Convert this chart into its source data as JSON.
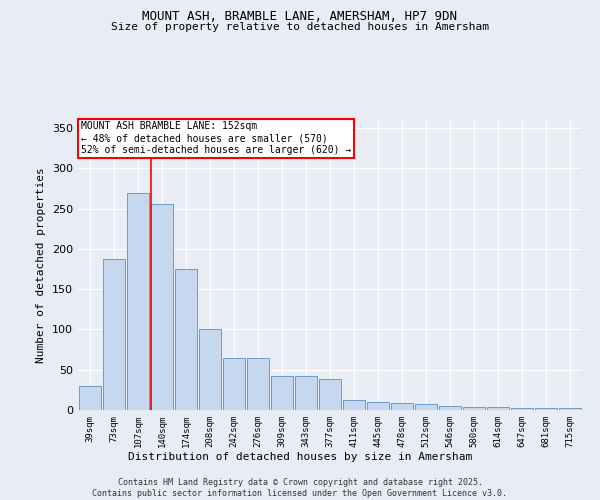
{
  "title_line1": "MOUNT ASH, BRAMBLE LANE, AMERSHAM, HP7 9DN",
  "title_line2": "Size of property relative to detached houses in Amersham",
  "xlabel": "Distribution of detached houses by size in Amersham",
  "ylabel": "Number of detached properties",
  "categories": [
    "39sqm",
    "73sqm",
    "107sqm",
    "140sqm",
    "174sqm",
    "208sqm",
    "242sqm",
    "276sqm",
    "309sqm",
    "343sqm",
    "377sqm",
    "411sqm",
    "445sqm",
    "478sqm",
    "512sqm",
    "546sqm",
    "580sqm",
    "614sqm",
    "647sqm",
    "681sqm",
    "715sqm"
  ],
  "values": [
    30,
    188,
    270,
    256,
    175,
    100,
    65,
    65,
    42,
    42,
    38,
    12,
    10,
    9,
    7,
    5,
    4,
    4,
    3,
    2,
    2
  ],
  "bar_color": "#c5d8ef",
  "bar_edge_color": "#5a8fc4",
  "background_color": "#e8edf5",
  "grid_color": "#ffffff",
  "ylim": [
    0,
    360
  ],
  "yticks": [
    0,
    50,
    100,
    150,
    200,
    250,
    300,
    350
  ],
  "red_line_x": 2.55,
  "annotation_text_line1": "MOUNT ASH BRAMBLE LANE: 152sqm",
  "annotation_text_line2": "← 48% of detached houses are smaller (570)",
  "annotation_text_line3": "52% of semi-detached houses are larger (620) →",
  "footnote_line1": "Contains HM Land Registry data © Crown copyright and database right 2025.",
  "footnote_line2": "Contains public sector information licensed under the Open Government Licence v3.0."
}
